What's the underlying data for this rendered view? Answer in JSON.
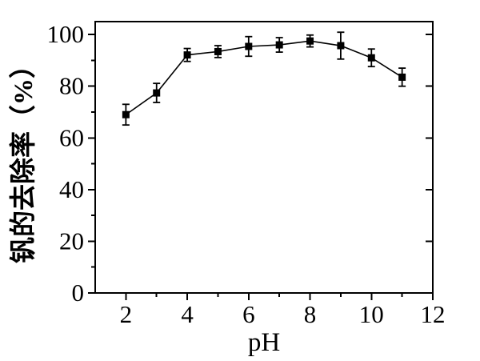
{
  "chart_data": {
    "type": "line",
    "title": "",
    "xlabel": "pH",
    "ylabel": "钒的去除率（%）",
    "ylabel_meaning": "Vanadium removal rate (%)",
    "x": [
      2,
      3,
      4,
      5,
      6,
      7,
      8,
      9,
      10,
      11
    ],
    "series": [
      {
        "name": "vanadium-removal-rate",
        "values": [
          69,
          77.4,
          92.1,
          93.4,
          95.4,
          96,
          97.5,
          95.7,
          91,
          83.5
        ],
        "errors": [
          4,
          3.7,
          2.5,
          2.3,
          3.8,
          2.8,
          2.3,
          5.2,
          3.4,
          3.5
        ]
      }
    ],
    "xlim": [
      1,
      12
    ],
    "ylim": [
      0,
      105
    ],
    "x_major_ticks": [
      2,
      4,
      6,
      8,
      10,
      12
    ],
    "x_minor_ticks": [
      3,
      5,
      7,
      9,
      11
    ],
    "y_major_ticks": [
      0,
      20,
      40,
      60,
      80,
      100
    ],
    "y_minor_ticks": [
      10,
      30,
      50,
      70,
      90
    ],
    "marker": "square",
    "error_bars": true,
    "grid": false,
    "legend": null,
    "line_color": "#000000",
    "marker_color": "#000000",
    "text_color": "#000000",
    "background": "#ffffff"
  }
}
